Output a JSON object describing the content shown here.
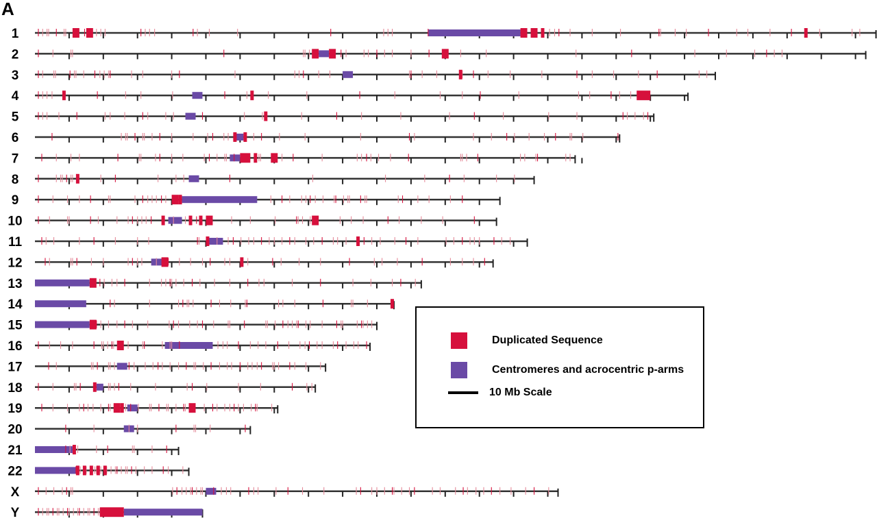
{
  "panel_label": "A",
  "colors": {
    "duplicated": "#d6103c",
    "duplicated_light": "#e58a99",
    "centromere": "#6a4aa6",
    "line": "#333333"
  },
  "legend": {
    "duplicated_label": "Duplicated Sequence",
    "centromere_label": "Centromeres and acrocentric p-arms",
    "scale_label": "10 Mb Scale"
  },
  "chromosomes": [
    {
      "name": "1",
      "length_mb": 246,
      "ticks": 25,
      "centromere": [
        115,
        142
      ],
      "blocks": [
        [
          11,
          13
        ],
        [
          15,
          17
        ],
        [
          142,
          144
        ],
        [
          145,
          147
        ],
        [
          148,
          149
        ],
        [
          225,
          226
        ]
      ],
      "lines": [
        1,
        2,
        3,
        4,
        6,
        8,
        9,
        12,
        14,
        18,
        19,
        20,
        31,
        32,
        33,
        35,
        46,
        47,
        51,
        59,
        86,
        102,
        103,
        104,
        115,
        145,
        150,
        152,
        153,
        156,
        163,
        171,
        182,
        183,
        187,
        190,
        197,
        205,
        208,
        215,
        221,
        229,
        239,
        241
      ]
    },
    {
      "name": "2",
      "length_mb": 243,
      "ticks": 24,
      "centromere": [
        83,
        86
      ],
      "blocks": [
        [
          81,
          83
        ],
        [
          86,
          88
        ],
        [
          119,
          121
        ]
      ],
      "lines": [
        1,
        5,
        10,
        11,
        55,
        78,
        79,
        80,
        89,
        91,
        96,
        97,
        100,
        102,
        104,
        110,
        115,
        124,
        132,
        158,
        174,
        193,
        202,
        210,
        214,
        216,
        218
      ]
    },
    {
      "name": "3",
      "length_mb": 199,
      "ticks": 19,
      "centromere": [
        90,
        93
      ],
      "blocks": [
        [
          124,
          125
        ]
      ],
      "lines": [
        1,
        2,
        5,
        6,
        10,
        11,
        12,
        14,
        17,
        19,
        20,
        21,
        22,
        28,
        31,
        40,
        42,
        58,
        76,
        77,
        78,
        83,
        86,
        109,
        110,
        113,
        117,
        125,
        128,
        132,
        139,
        148,
        158,
        163,
        169,
        176,
        182,
        194,
        196
      ]
    },
    {
      "name": "4",
      "length_mb": 191,
      "ticks": 19,
      "centromere": [
        46,
        49
      ],
      "blocks": [
        [
          8,
          9
        ],
        [
          63,
          64
        ],
        [
          176,
          180
        ]
      ],
      "lines": [
        1,
        2,
        3,
        5,
        18,
        26,
        31,
        40,
        55,
        62,
        68,
        79,
        95,
        105,
        118,
        125,
        130,
        141,
        159,
        162,
        168,
        171,
        174
      ]
    },
    {
      "name": "5",
      "length_mb": 181,
      "ticks": 18,
      "centromere": [
        44,
        47
      ],
      "blocks": [
        [
          67,
          68
        ]
      ],
      "lines": [
        1,
        2,
        3,
        7,
        12,
        20,
        22,
        26,
        31,
        33,
        38,
        40,
        49,
        61,
        66,
        78,
        88,
        95,
        107,
        121,
        128,
        137,
        150,
        158,
        172,
        173,
        175,
        178,
        179
      ]
    },
    {
      "name": "6",
      "length_mb": 171,
      "ticks": 17,
      "centromere": [
        58,
        61
      ],
      "blocks": [
        [
          58,
          59
        ],
        [
          61,
          62
        ]
      ],
      "lines": [
        5,
        25,
        26,
        27,
        29,
        31,
        32,
        34,
        36,
        40,
        46,
        50,
        52,
        55,
        56,
        64,
        66,
        71,
        79,
        95,
        109,
        111,
        128,
        133,
        138,
        140,
        144,
        149,
        152,
        156,
        157,
        160,
        170
      ]
    },
    {
      "name": "7",
      "length_mb": 158,
      "ticks": 16,
      "centromere": [
        57,
        60
      ],
      "blocks": [
        [
          60,
          63
        ],
        [
          64,
          65
        ],
        [
          69,
          71
        ]
      ],
      "lines": [
        2,
        6,
        10,
        13,
        24,
        30,
        31,
        35,
        36,
        40,
        43,
        49,
        51,
        53,
        55,
        56,
        58,
        65,
        66,
        72,
        75,
        84,
        94,
        95,
        97,
        98,
        100,
        104,
        109,
        124,
        125,
        126,
        129,
        142,
        143,
        146,
        147,
        155,
        156
      ]
    },
    {
      "name": "8",
      "length_mb": 146,
      "ticks": 14,
      "centromere": [
        45,
        48
      ],
      "blocks": [
        [
          12,
          13
        ]
      ],
      "lines": [
        1,
        6,
        7,
        8,
        9,
        10,
        11,
        19,
        23,
        36,
        41,
        43,
        57,
        81,
        102,
        114,
        121,
        125,
        135,
        140
      ]
    },
    {
      "name": "9",
      "length_mb": 136,
      "ticks": 13,
      "centromere": [
        43,
        65
      ],
      "blocks": [
        [
          40,
          42
        ],
        [
          42,
          43
        ]
      ],
      "lines": [
        1,
        5,
        9,
        13,
        16,
        21,
        22,
        29,
        31,
        33,
        34,
        35,
        37,
        38,
        41,
        69,
        72,
        74,
        78,
        79,
        80,
        82,
        84,
        87,
        88,
        90,
        91,
        92,
        95,
        96,
        97,
        106,
        107,
        112,
        115,
        121,
        125
      ]
    },
    {
      "name": "10",
      "length_mb": 135,
      "ticks": 13,
      "centromere": [
        39,
        43
      ],
      "blocks": [
        [
          37,
          38
        ],
        [
          45,
          46
        ],
        [
          48,
          49
        ],
        [
          50,
          52
        ],
        [
          81,
          83
        ]
      ],
      "lines": [
        1,
        4,
        9,
        10,
        16,
        18,
        24,
        27,
        28,
        30,
        31,
        32,
        34,
        37,
        40,
        44,
        47,
        57,
        63,
        70,
        76,
        77,
        78,
        80,
        82,
        89,
        92,
        96,
        103,
        106,
        113,
        119,
        128
      ]
    },
    {
      "name": "11",
      "length_mb": 144,
      "ticks": 14,
      "centromere": [
        51,
        55
      ],
      "blocks": [
        [
          50,
          51
        ],
        [
          94,
          95
        ]
      ],
      "lines": [
        2,
        3,
        5,
        13,
        17,
        23,
        30,
        33,
        47,
        48,
        53,
        56,
        58,
        60,
        62,
        64,
        66,
        68,
        70,
        72,
        74,
        76,
        79,
        81,
        84,
        87,
        88,
        91,
        96,
        98,
        101,
        105,
        108,
        112,
        120,
        122,
        125,
        127,
        128,
        130,
        134,
        136,
        139
      ]
    },
    {
      "name": "12",
      "length_mb": 134,
      "ticks": 13,
      "centromere": [
        34,
        38
      ],
      "blocks": [
        [
          37,
          39
        ],
        [
          60,
          61
        ]
      ],
      "lines": [
        3,
        4,
        10,
        11,
        12,
        16,
        20,
        27,
        28,
        30,
        31,
        35,
        39,
        42,
        45,
        49,
        51,
        55,
        57,
        62,
        69,
        72,
        77,
        83,
        92,
        99,
        101,
        106,
        113,
        121,
        125,
        128,
        131
      ]
    },
    {
      "name": "13",
      "length_mb": 113,
      "ticks": 11,
      "centromere": [
        0,
        16
      ],
      "blocks": [
        [
          16,
          18
        ]
      ],
      "lines": [
        19,
        20,
        22,
        24,
        26,
        33,
        37,
        38,
        39,
        40,
        41,
        43,
        46,
        48,
        52,
        57,
        62,
        65,
        67,
        75,
        83,
        93,
        98,
        104,
        107,
        111
      ]
    },
    {
      "name": "14",
      "length_mb": 105,
      "ticks": 10,
      "centromere": [
        0,
        15
      ],
      "blocks": [
        [
          104,
          105
        ]
      ],
      "lines": [
        22,
        23,
        33,
        42,
        43,
        44,
        45,
        46,
        51,
        54,
        57,
        61,
        62,
        71,
        72,
        76,
        84,
        92,
        93,
        97
      ]
    },
    {
      "name": "15",
      "length_mb": 100,
      "ticks": 10,
      "centromere": [
        0,
        16
      ],
      "blocks": [
        [
          16,
          18
        ]
      ],
      "lines": [
        18,
        19,
        21,
        24,
        26,
        28,
        33,
        39,
        40,
        42,
        45,
        47,
        49,
        52,
        56,
        57,
        61,
        67,
        68,
        70,
        72,
        74,
        75,
        76,
        77,
        79,
        80,
        84,
        88,
        89,
        90,
        94,
        95,
        96,
        97,
        98
      ]
    },
    {
      "name": "16",
      "length_mb": 98,
      "ticks": 9,
      "centromere": [
        38,
        52
      ],
      "blocks": [
        [
          24,
          26
        ]
      ],
      "lines": [
        1,
        4,
        7,
        11,
        17,
        19,
        20,
        21,
        22,
        23,
        27,
        31,
        32,
        37,
        39,
        40,
        42,
        53,
        55,
        56,
        59,
        63,
        65,
        67,
        71,
        74,
        77,
        79,
        80,
        82,
        84,
        87,
        88,
        91,
        93,
        94,
        97
      ]
    },
    {
      "name": "17",
      "length_mb": 85,
      "ticks": 8,
      "centromere": [
        24,
        27
      ],
      "blocks": [],
      "lines": [
        4,
        6,
        16,
        17,
        18,
        21,
        22,
        23,
        27,
        29,
        32,
        34,
        36,
        37,
        39,
        42,
        44,
        46,
        47,
        49,
        51,
        54,
        56,
        57,
        60,
        62,
        63,
        65,
        66,
        69,
        70,
        71,
        74,
        76,
        79,
        83
      ]
    },
    {
      "name": "18",
      "length_mb": 82,
      "ticks": 8,
      "centromere": [
        18,
        20
      ],
      "blocks": [
        [
          17,
          18
        ]
      ],
      "lines": [
        1,
        5,
        11,
        12,
        13,
        21,
        22,
        23,
        24,
        28,
        35,
        44,
        46,
        50,
        59,
        66,
        75,
        79,
        81
      ]
    },
    {
      "name": "19",
      "length_mb": 71,
      "ticks": 7,
      "centromere": [
        27,
        30
      ],
      "blocks": [
        [
          23,
          25
        ],
        [
          25,
          26
        ],
        [
          45,
          47
        ]
      ],
      "lines": [
        2,
        5,
        9,
        13,
        14,
        15,
        17,
        19,
        21,
        22,
        24,
        26,
        28,
        30,
        33,
        34,
        36,
        38,
        39,
        41,
        43,
        44,
        46,
        49,
        52,
        53,
        55,
        57,
        58,
        59,
        61,
        63,
        64,
        65,
        69
      ]
    },
    {
      "name": "20",
      "length_mb": 63,
      "ticks": 6,
      "centromere": [
        26,
        29
      ],
      "blocks": [],
      "lines": [
        9,
        17,
        27,
        30,
        41,
        46,
        47,
        51,
        61
      ]
    },
    {
      "name": "21",
      "length_mb": 42,
      "ticks": 4,
      "centromere": [
        0,
        11
      ],
      "blocks": [
        [
          11,
          12
        ]
      ],
      "lines": [
        9,
        10,
        12,
        18,
        21,
        28,
        29,
        34,
        38
      ]
    },
    {
      "name": "22",
      "length_mb": 45,
      "ticks": 4,
      "centromere": [
        0,
        12
      ],
      "blocks": [
        [
          12,
          13
        ],
        [
          14,
          15
        ],
        [
          16,
          17
        ],
        [
          18,
          19
        ],
        [
          20,
          21
        ]
      ],
      "lines": [
        12,
        13,
        14,
        15,
        16,
        17,
        18,
        19,
        20,
        21,
        22,
        23,
        24,
        25,
        26,
        27,
        28,
        29,
        32,
        34,
        37,
        39,
        43
      ]
    },
    {
      "name": "X",
      "length_mb": 153,
      "ticks": 15,
      "centromere": [
        50,
        53
      ],
      "blocks": [],
      "lines": [
        1,
        3,
        5,
        8,
        9,
        10,
        11,
        40,
        41,
        43,
        44,
        45,
        46,
        47,
        48,
        49,
        52,
        54,
        56,
        57,
        62,
        64,
        65,
        70,
        74,
        78,
        84,
        94,
        95,
        98,
        100,
        102,
        104,
        105,
        107,
        109,
        111,
        116,
        118,
        123,
        125,
        126,
        129,
        131,
        133,
        136,
        139,
        143,
        146,
        150
      ]
    },
    {
      "name": "Y",
      "length_mb": 49,
      "ticks": 4,
      "centromere": [
        26,
        49
      ],
      "blocks": [
        [
          19,
          26
        ]
      ],
      "lines": [
        1,
        2,
        3,
        4,
        5,
        6,
        7,
        8,
        9,
        10,
        11,
        12,
        13,
        14,
        15,
        16,
        17,
        18,
        19,
        20,
        21,
        22,
        23,
        24,
        25
      ]
    }
  ]
}
